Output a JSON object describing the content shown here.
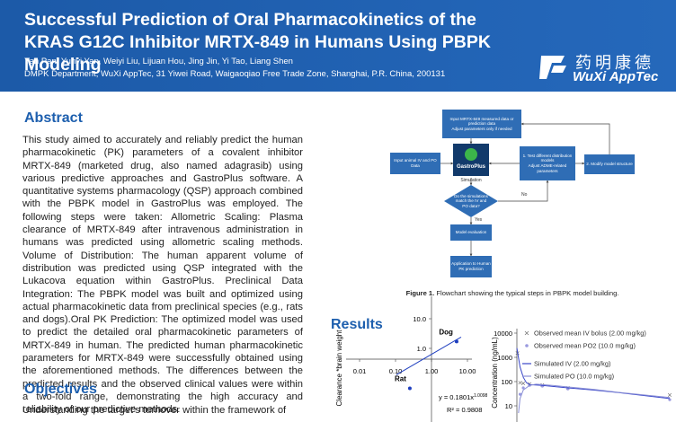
{
  "header": {
    "title": "Successful Prediction of Oral Pharmacokinetics of the KRAS G12C Inhibitor MRTX-849 in Humans Using PBPK Modeling",
    "authors": "Yan Pan, Yunyi Yan, Weiyi Liu, Lijuan Hou, Jing Jin, Yi Tao, Liang Shen",
    "affiliation": "DMPK Department, WuXi AppTec, 31 Yiwei Road, Waigaoqiao Free Trade Zone, Shanghai, P.R. China, 200131",
    "logo_cn": "药明康德",
    "logo_en": "WuXi AppTec"
  },
  "abstract": {
    "heading": "Abstract",
    "text": "This study aimed to accurately and reliably predict the human pharmacokinetic (PK) parameters of a covalent inhibitor MRTX-849 (marketed drug, also named adagrasib) using various predictive approaches and GastroPlus software. A quantitative systems pharmacology (QSP) approach combined with the PBPK model in GastroPlus was employed. The following steps were taken: Allometric Scaling: Plasma clearance of MRTX-849 after intravenous administration in humans was predicted using allometric scaling methods. Volume of Distribution: The human apparent volume of distribution was predicted using QSP integrated with the Lukacova equation within GastroPlus. Preclinical Data Integration: The PBPK model was built and optimized using actual pharmacokinetic data from preclinical species (e.g., rats and dogs).Oral PK Prediction: The optimized model was used to predict the detailed oral pharmacokinetic parameters of MRTX-849 in human. The predicted human pharmacokinetic parameters for MRTX-849 were successfully obtained using the aforementioned methods. The differences between the predicted results and the observed clinical values were within a two-fold range, demonstrating the high accuracy and reliability of our predictive methods."
  },
  "objectives": {
    "heading": "Objectives",
    "text": "Understanding the target's turnover within the framework of"
  },
  "figure1": {
    "input": "Input MRTX-849 measured data or prediction data",
    "adjust": "Adjust parameters only if needed",
    "animal": "Input animal IV and PO Data",
    "logo": "GastroPlus",
    "simulation": "Simulation",
    "test": "1. Test different distribution models",
    "adme": "Adjust ADME-related parameters",
    "modify": "2. Modify model structure",
    "question": "Do the simulations match the IV and PO data?",
    "yes": "Yes",
    "no": "No",
    "evaluation": "Model evaluation",
    "application": "Application to Human PK prediction",
    "caption_label": "Figure 1.",
    "caption": "Flowchart showing the typical steps in PBPK model building."
  },
  "results": {
    "heading": "Results"
  },
  "allometry_chart": {
    "type": "scatter",
    "log": true,
    "y_label": "Clearance *brain weight",
    "color": "#1f3fbf",
    "xlim": [
      0.01,
      10
    ],
    "ylim": [
      0.01,
      100
    ],
    "xticks": [
      0.01,
      {
        "value": 0.1,
        "label": "0.10"
      },
      {
        "value": 1,
        "label": "1.00"
      },
      {
        "value": 10,
        "label": "10.00"
      }
    ],
    "yticks": [
      {
        "value": 10,
        "label": "10.0"
      },
      {
        "value": 1,
        "label": "1.0"
      }
    ],
    "points": [
      {
        "label": "Rat",
        "x": 0.25,
        "y": 0.045
      },
      {
        "label": "Dog",
        "x": 5,
        "y": 1.7
      }
    ],
    "equation": "y = 0.1801x",
    "equation_exponent": "1.0098",
    "r2": "R² = 0.9808"
  },
  "pk_chart": {
    "type": "line",
    "log": true,
    "y_label": "Concentration (ng/mL)",
    "xlim": [
      0,
      24
    ],
    "ylim": [
      1,
      10000
    ],
    "yticks": [
      10000,
      1000,
      100,
      10
    ],
    "series": [
      {
        "name": "Observed mean IV bolus (2.00 mg/kg)",
        "color": "#777777",
        "marker": "x",
        "x": [
          0.083,
          0.5,
          1,
          2,
          4,
          8,
          24
        ],
        "values": [
          1500,
          90,
          85,
          80,
          72,
          55,
          28
        ]
      },
      {
        "name": "Observed mean PO2 (10.0 mg/kg)",
        "color": "#9a9adf",
        "marker": "dot",
        "x": [
          0.5,
          1,
          2,
          4,
          8,
          24
        ],
        "values": [
          30,
          55,
          70,
          65,
          50,
          18
        ]
      },
      {
        "name": "Simulated IV (2.00 mg/kg)",
        "color": "#3a47c9",
        "marker": "line",
        "x": [
          0,
          0.5,
          1,
          1.5,
          2,
          4,
          6,
          8,
          12,
          16,
          24
        ],
        "values": [
          2400,
          400,
          150,
          90,
          75,
          70,
          62,
          55,
          45,
          35,
          20
        ]
      },
      {
        "name": "Simulated PO (10.0 mg/kg)",
        "color": "#8a8fd6",
        "marker": "line",
        "x": [
          0.25,
          0.5,
          1,
          2,
          3,
          4,
          6,
          8,
          12,
          16,
          24
        ],
        "values": [
          5,
          20,
          45,
          70,
          78,
          75,
          68,
          60,
          48,
          36,
          22
        ]
      }
    ]
  }
}
